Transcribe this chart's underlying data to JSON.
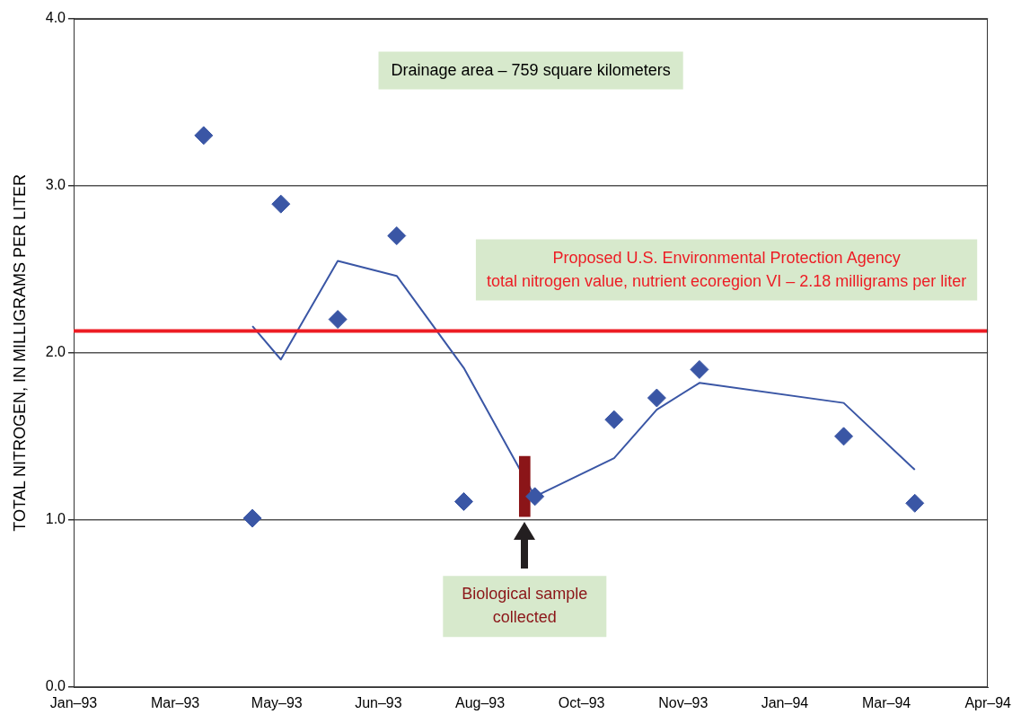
{
  "chart_data": {
    "type": "scatter",
    "ylabel": "TOTAL NITROGEN, IN MILLIGRAMS PER LITER",
    "xlim": [
      "1993-01-25",
      "1994-04-20"
    ],
    "xticks": [
      {
        "value": "1993-01-25",
        "label": "Jan–93"
      },
      {
        "value": "1993-03-16",
        "label": "Mar–93"
      },
      {
        "value": "1993-05-05",
        "label": "May–93"
      },
      {
        "value": "1993-06-24",
        "label": "Jun–93"
      },
      {
        "value": "1993-08-13",
        "label": "Aug–93"
      },
      {
        "value": "1993-10-02",
        "label": "Oct–93"
      },
      {
        "value": "1993-11-21",
        "label": "Nov–93"
      },
      {
        "value": "1994-01-10",
        "label": "Jan–94"
      },
      {
        "value": "1994-03-01",
        "label": "Mar–94"
      },
      {
        "value": "1994-04-20",
        "label": "Apr–94"
      }
    ],
    "ylim": [
      0,
      4
    ],
    "yticks": [
      {
        "value": 0,
        "label": "0.0"
      },
      {
        "value": 1,
        "label": "1.0"
      },
      {
        "value": 2,
        "label": "2.0"
      },
      {
        "value": 3,
        "label": "3.0"
      },
      {
        "value": 4,
        "label": "4.0"
      }
    ],
    "grid": "y",
    "legend": false,
    "marker": "diamond",
    "series": [
      {
        "color": "#3a56a5",
        "x": [
          "1993-03-30",
          "1993-04-23",
          "1993-05-07",
          "1993-06-04",
          "1993-07-03",
          "1993-08-05",
          "1993-09-09",
          "1993-10-18",
          "1993-11-08",
          "1993-11-29",
          "1994-02-08",
          "1994-03-15"
        ],
        "values": [
          3.3,
          1.01,
          2.89,
          2.2,
          2.7,
          1.11,
          1.14,
          1.6,
          1.73,
          1.9,
          1.5,
          1.1
        ]
      },
      {
        "type": "bar",
        "color": "#8b1518",
        "marker": "none",
        "x": [
          "1993-09-04"
        ],
        "base": [
          1.02
        ],
        "values": [
          0.36
        ]
      },
      {
        "type": "line",
        "color": "#3a56a5",
        "marker": "none",
        "x": [
          "1993-04-23",
          "1993-05-07",
          "1993-06-04",
          "1993-07-03",
          "1993-08-05",
          "1993-09-09",
          "1993-10-18",
          "1993-11-08",
          "1993-11-29",
          "1994-02-08",
          "1994-03-15"
        ],
        "values": [
          2.16,
          1.96,
          2.55,
          2.46,
          1.91,
          1.14,
          1.37,
          1.66,
          1.82,
          1.7,
          1.3
        ]
      }
    ],
    "ref_lines": [
      {
        "axis": "y",
        "value": 2.13,
        "color": "#ed1c24",
        "label": "Proposed U.S. Environmental Protection Agency\ntotal nitrogen value, nutrient ecoregion VI – 2.18 milligrams per liter"
      }
    ],
    "annotations": [
      "Drainage area – 759 square kilometers",
      "Biological sample collected"
    ]
  }
}
